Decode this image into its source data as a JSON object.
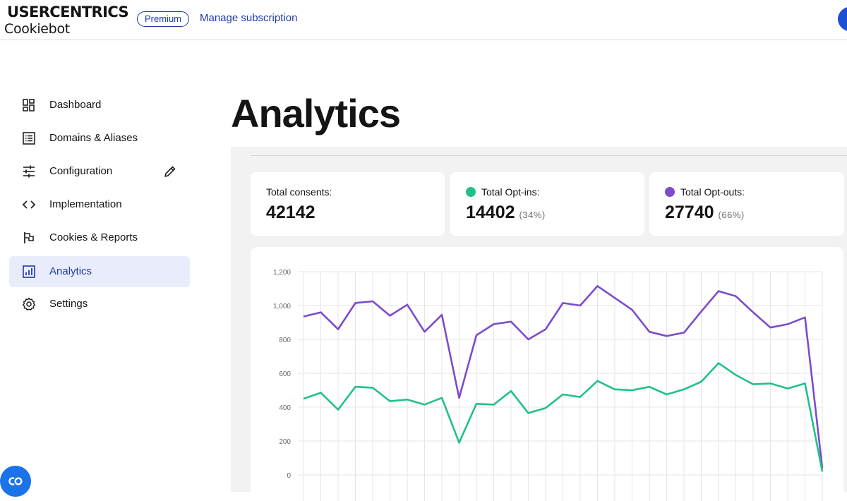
{
  "header": {
    "brand_name": "USERCENTRICS",
    "product_name": "Cookiebot",
    "plan_badge": "Premium",
    "manage_link": "Manage subscription"
  },
  "sidebar": {
    "items": [
      {
        "label": "Dashboard",
        "icon": "dashboard-icon"
      },
      {
        "label": "Domains & Aliases",
        "icon": "list-icon"
      },
      {
        "label": "Configuration",
        "icon": "sliders-icon"
      },
      {
        "label": "Implementation",
        "icon": "code-icon"
      },
      {
        "label": "Cookies & Reports",
        "icon": "flag-icon"
      },
      {
        "label": "Analytics",
        "icon": "bar-chart-icon",
        "active": true
      },
      {
        "label": "Settings",
        "icon": "gear-icon"
      }
    ]
  },
  "main": {
    "title": "Analytics",
    "stats": [
      {
        "label": "Total consents:",
        "value": "42142",
        "percent": ""
      },
      {
        "label": "Total Opt-ins:",
        "value": "14402",
        "percent": "(34%)",
        "color": "#21c08b"
      },
      {
        "label": "Total Opt-outs:",
        "value": "27740",
        "percent": "(66%)",
        "color": "#7b4ccc"
      }
    ]
  },
  "colors": {
    "accent": "#1e3ba8",
    "opt_in": "#21c08b",
    "opt_out": "#7b4ccc"
  },
  "chart_data": {
    "type": "line",
    "ylim": [
      0,
      1200
    ],
    "yticks": [
      "0",
      "200",
      "400",
      "600",
      "800",
      "1,000",
      "1,200"
    ],
    "ytick_values": [
      0,
      200,
      400,
      600,
      800,
      1000,
      1200
    ],
    "grid": true,
    "series": [
      {
        "color": "#7b4ccc",
        "values": [
          935,
          960,
          860,
          1015,
          1025,
          940,
          1005,
          845,
          945,
          455,
          825,
          890,
          905,
          800,
          860,
          1015,
          1000,
          1115,
          1045,
          975,
          845,
          820,
          840,
          965,
          1085,
          1055,
          960,
          870,
          890,
          930,
          40
        ]
      },
      {
        "color": "#21c08b",
        "values": [
          450,
          485,
          385,
          520,
          515,
          435,
          445,
          415,
          455,
          190,
          420,
          415,
          495,
          365,
          395,
          475,
          460,
          555,
          505,
          500,
          520,
          475,
          505,
          550,
          660,
          590,
          535,
          540,
          510,
          540,
          20
        ]
      }
    ]
  }
}
